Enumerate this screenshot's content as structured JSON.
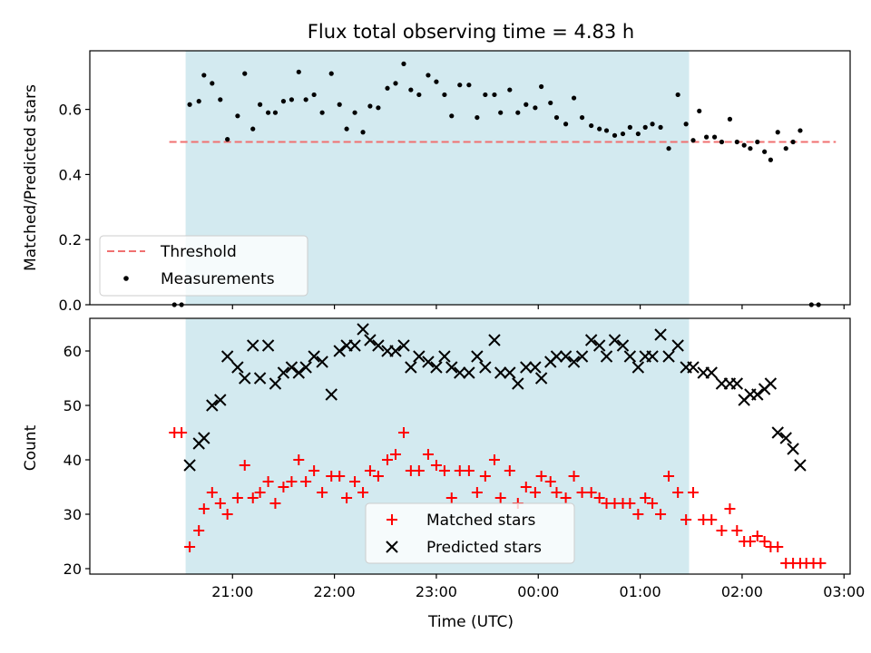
{
  "chart_data": [
    {
      "type": "scatter",
      "title": "Flux total observing time = 4.83 h",
      "ylabel": "Matched/Predicted stars",
      "xlabel": "",
      "x_range_hours": [
        19.6,
        27.06
      ],
      "ylim": [
        0,
        0.78
      ],
      "yticks": [
        0.0,
        0.2,
        0.4,
        0.6
      ],
      "ytick_labels": [
        "0.0",
        "0.2",
        "0.4",
        "0.6"
      ],
      "xticks_hours": [
        21,
        22,
        23,
        24,
        25,
        26,
        27
      ],
      "grid": false,
      "legend": {
        "placement": "lower-left"
      },
      "shaded_span": {
        "from_hours": 20.54,
        "to_hours": 25.48,
        "color": "#d3eaf0"
      },
      "threshold": {
        "name": "Threshold",
        "value": 0.5,
        "from_hours": 20.38,
        "to_hours": 26.92,
        "color": "#f07070"
      },
      "series": [
        {
          "name": "Measurements",
          "color": "#000000",
          "points": [
            [
              20.43,
              0.0
            ],
            [
              20.5,
              0.0
            ],
            [
              20.58,
              0.615
            ],
            [
              20.67,
              0.625
            ],
            [
              20.72,
              0.705
            ],
            [
              20.8,
              0.68
            ],
            [
              20.88,
              0.63
            ],
            [
              20.95,
              0.508
            ],
            [
              21.05,
              0.58
            ],
            [
              21.12,
              0.71
            ],
            [
              21.2,
              0.54
            ],
            [
              21.27,
              0.615
            ],
            [
              21.35,
              0.59
            ],
            [
              21.42,
              0.59
            ],
            [
              21.5,
              0.625
            ],
            [
              21.58,
              0.63
            ],
            [
              21.65,
              0.715
            ],
            [
              21.72,
              0.63
            ],
            [
              21.8,
              0.645
            ],
            [
              21.88,
              0.59
            ],
            [
              21.97,
              0.71
            ],
            [
              22.05,
              0.615
            ],
            [
              22.12,
              0.54
            ],
            [
              22.2,
              0.59
            ],
            [
              22.28,
              0.53
            ],
            [
              22.35,
              0.61
            ],
            [
              22.43,
              0.605
            ],
            [
              22.52,
              0.665
            ],
            [
              22.6,
              0.68
            ],
            [
              22.68,
              0.74
            ],
            [
              22.75,
              0.66
            ],
            [
              22.83,
              0.645
            ],
            [
              22.92,
              0.705
            ],
            [
              23.0,
              0.685
            ],
            [
              23.08,
              0.645
            ],
            [
              23.15,
              0.58
            ],
            [
              23.23,
              0.675
            ],
            [
              23.32,
              0.675
            ],
            [
              23.4,
              0.575
            ],
            [
              23.48,
              0.645
            ],
            [
              23.57,
              0.645
            ],
            [
              23.63,
              0.59
            ],
            [
              23.72,
              0.66
            ],
            [
              23.8,
              0.59
            ],
            [
              23.88,
              0.615
            ],
            [
              23.97,
              0.605
            ],
            [
              24.03,
              0.67
            ],
            [
              24.12,
              0.62
            ],
            [
              24.18,
              0.575
            ],
            [
              24.27,
              0.555
            ],
            [
              24.35,
              0.635
            ],
            [
              24.43,
              0.575
            ],
            [
              24.52,
              0.55
            ],
            [
              24.6,
              0.54
            ],
            [
              24.67,
              0.535
            ],
            [
              24.75,
              0.52
            ],
            [
              24.83,
              0.525
            ],
            [
              24.9,
              0.545
            ],
            [
              24.98,
              0.525
            ],
            [
              25.05,
              0.545
            ],
            [
              25.12,
              0.555
            ],
            [
              25.2,
              0.545
            ],
            [
              25.28,
              0.48
            ],
            [
              25.37,
              0.645
            ],
            [
              25.45,
              0.555
            ],
            [
              25.52,
              0.505
            ],
            [
              25.58,
              0.595
            ],
            [
              25.65,
              0.515
            ],
            [
              25.73,
              0.515
            ],
            [
              25.8,
              0.5
            ],
            [
              25.88,
              0.57
            ],
            [
              25.95,
              0.5
            ],
            [
              26.02,
              0.49
            ],
            [
              26.08,
              0.48
            ],
            [
              26.15,
              0.5
            ],
            [
              26.22,
              0.47
            ],
            [
              26.28,
              0.445
            ],
            [
              26.35,
              0.53
            ],
            [
              26.43,
              0.48
            ],
            [
              26.5,
              0.5
            ],
            [
              26.57,
              0.535
            ],
            [
              26.68,
              0.0
            ],
            [
              26.75,
              0.0
            ]
          ]
        }
      ]
    },
    {
      "type": "scatter",
      "title": "",
      "xlabel": "Time (UTC)",
      "ylabel": "Count",
      "x_range_hours": [
        19.6,
        27.06
      ],
      "ylim": [
        19,
        66
      ],
      "yticks": [
        20,
        30,
        40,
        50,
        60
      ],
      "ytick_labels": [
        "20",
        "30",
        "40",
        "50",
        "60"
      ],
      "xticks_hours": [
        21,
        22,
        23,
        24,
        25,
        26,
        27
      ],
      "xtick_labels": [
        "21:00",
        "22:00",
        "23:00",
        "00:00",
        "01:00",
        "02:00",
        "03:00"
      ],
      "grid": false,
      "legend": {
        "placement": "lower-center"
      },
      "shaded_span": {
        "from_hours": 20.54,
        "to_hours": 25.48,
        "color": "#d3eaf0"
      },
      "series": [
        {
          "name": "Matched stars",
          "marker": "plus",
          "color": "#ff0000",
          "points": [
            [
              20.43,
              45
            ],
            [
              20.5,
              45
            ],
            [
              20.58,
              24
            ],
            [
              20.67,
              27
            ],
            [
              20.72,
              31
            ],
            [
              20.8,
              34
            ],
            [
              20.88,
              32
            ],
            [
              20.95,
              30
            ],
            [
              21.05,
              33
            ],
            [
              21.12,
              39
            ],
            [
              21.2,
              33
            ],
            [
              21.27,
              34
            ],
            [
              21.35,
              36
            ],
            [
              21.42,
              32
            ],
            [
              21.5,
              35
            ],
            [
              21.58,
              36
            ],
            [
              21.65,
              40
            ],
            [
              21.72,
              36
            ],
            [
              21.8,
              38
            ],
            [
              21.88,
              34
            ],
            [
              21.97,
              37
            ],
            [
              22.05,
              37
            ],
            [
              22.12,
              33
            ],
            [
              22.2,
              36
            ],
            [
              22.28,
              34
            ],
            [
              22.35,
              38
            ],
            [
              22.43,
              37
            ],
            [
              22.52,
              40
            ],
            [
              22.6,
              41
            ],
            [
              22.68,
              45
            ],
            [
              22.75,
              38
            ],
            [
              22.83,
              38
            ],
            [
              22.92,
              41
            ],
            [
              23.0,
              39
            ],
            [
              23.08,
              38
            ],
            [
              23.15,
              33
            ],
            [
              23.23,
              38
            ],
            [
              23.32,
              38
            ],
            [
              23.4,
              34
            ],
            [
              23.48,
              37
            ],
            [
              23.57,
              40
            ],
            [
              23.63,
              33
            ],
            [
              23.72,
              38
            ],
            [
              23.8,
              32
            ],
            [
              23.88,
              35
            ],
            [
              23.97,
              34
            ],
            [
              24.03,
              37
            ],
            [
              24.12,
              36
            ],
            [
              24.18,
              34
            ],
            [
              24.27,
              33
            ],
            [
              24.35,
              37
            ],
            [
              24.43,
              34
            ],
            [
              24.52,
              34
            ],
            [
              24.6,
              33
            ],
            [
              24.67,
              32
            ],
            [
              24.75,
              32
            ],
            [
              24.83,
              32
            ],
            [
              24.9,
              32
            ],
            [
              24.98,
              30
            ],
            [
              25.05,
              33
            ],
            [
              25.12,
              32
            ],
            [
              25.2,
              30
            ],
            [
              25.28,
              37
            ],
            [
              25.37,
              34
            ],
            [
              25.45,
              29
            ],
            [
              25.52,
              34
            ],
            [
              25.62,
              29
            ],
            [
              25.7,
              29
            ],
            [
              25.8,
              27
            ],
            [
              25.88,
              31
            ],
            [
              25.95,
              27
            ],
            [
              26.02,
              25
            ],
            [
              26.08,
              25
            ],
            [
              26.15,
              26
            ],
            [
              26.22,
              25
            ],
            [
              26.28,
              24
            ],
            [
              26.35,
              24
            ],
            [
              26.43,
              21
            ],
            [
              26.5,
              21
            ],
            [
              26.57,
              21
            ],
            [
              26.63,
              21
            ],
            [
              26.7,
              21
            ],
            [
              26.77,
              21
            ]
          ]
        },
        {
          "name": "Predicted stars",
          "marker": "x",
          "color": "#000000",
          "points": [
            [
              20.58,
              39
            ],
            [
              20.67,
              43
            ],
            [
              20.72,
              44
            ],
            [
              20.8,
              50
            ],
            [
              20.88,
              51
            ],
            [
              20.95,
              59
            ],
            [
              21.05,
              57
            ],
            [
              21.12,
              55
            ],
            [
              21.2,
              61
            ],
            [
              21.27,
              55
            ],
            [
              21.35,
              61
            ],
            [
              21.42,
              54
            ],
            [
              21.5,
              56
            ],
            [
              21.58,
              57
            ],
            [
              21.65,
              56
            ],
            [
              21.72,
              57
            ],
            [
              21.8,
              59
            ],
            [
              21.88,
              58
            ],
            [
              21.97,
              52
            ],
            [
              22.05,
              60
            ],
            [
              22.12,
              61
            ],
            [
              22.2,
              61
            ],
            [
              22.28,
              64
            ],
            [
              22.35,
              62
            ],
            [
              22.43,
              61
            ],
            [
              22.52,
              60
            ],
            [
              22.6,
              60
            ],
            [
              22.68,
              61
            ],
            [
              22.75,
              57
            ],
            [
              22.83,
              59
            ],
            [
              22.92,
              58
            ],
            [
              23.0,
              57
            ],
            [
              23.08,
              59
            ],
            [
              23.15,
              57
            ],
            [
              23.23,
              56
            ],
            [
              23.32,
              56
            ],
            [
              23.4,
              59
            ],
            [
              23.48,
              57
            ],
            [
              23.57,
              62
            ],
            [
              23.63,
              56
            ],
            [
              23.72,
              56
            ],
            [
              23.8,
              54
            ],
            [
              23.88,
              57
            ],
            [
              23.97,
              57
            ],
            [
              24.03,
              55
            ],
            [
              24.12,
              58
            ],
            [
              24.18,
              59
            ],
            [
              24.27,
              59
            ],
            [
              24.35,
              58
            ],
            [
              24.43,
              59
            ],
            [
              24.52,
              62
            ],
            [
              24.6,
              61
            ],
            [
              24.67,
              59
            ],
            [
              24.75,
              62
            ],
            [
              24.83,
              61
            ],
            [
              24.9,
              59
            ],
            [
              24.98,
              57
            ],
            [
              25.05,
              59
            ],
            [
              25.12,
              59
            ],
            [
              25.2,
              63
            ],
            [
              25.28,
              59
            ],
            [
              25.37,
              61
            ],
            [
              25.45,
              57
            ],
            [
              25.52,
              57
            ],
            [
              25.62,
              56
            ],
            [
              25.7,
              56
            ],
            [
              25.8,
              54
            ],
            [
              25.88,
              54
            ],
            [
              25.95,
              54
            ],
            [
              26.02,
              51
            ],
            [
              26.08,
              52
            ],
            [
              26.15,
              52
            ],
            [
              26.22,
              53
            ],
            [
              26.28,
              54
            ],
            [
              26.35,
              45
            ],
            [
              26.43,
              44
            ],
            [
              26.5,
              42
            ],
            [
              26.57,
              39
            ]
          ]
        }
      ]
    }
  ]
}
